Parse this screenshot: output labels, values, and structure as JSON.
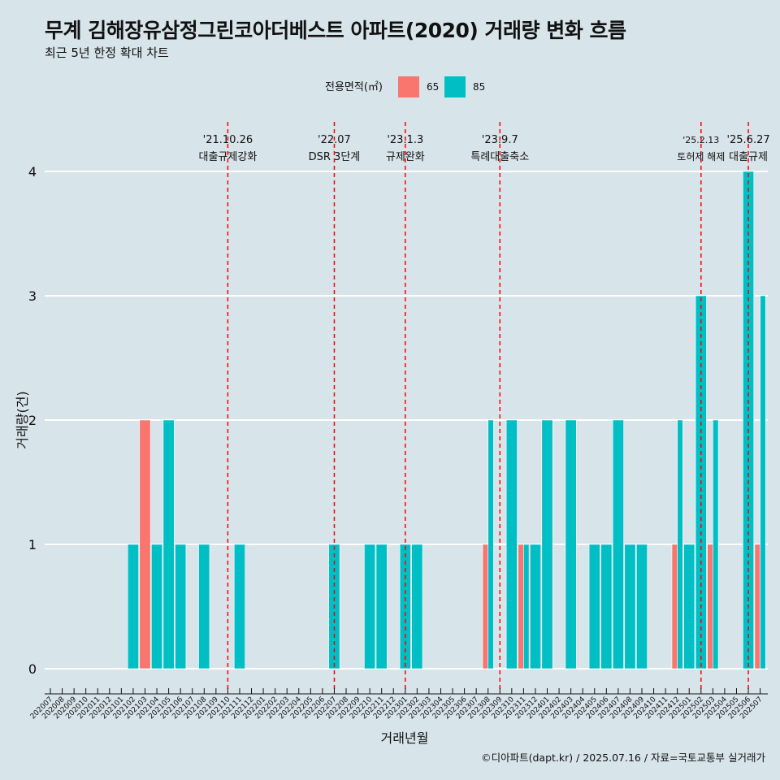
{
  "title": "무계 김해장유삼정그린코아더베스트 아파트(2020) 거래량 변화 흐름",
  "subtitle": "최근 5년 한정 확대 차트",
  "caption": "©디아파트(dapt.kr) / 2025.07.16 / 자료=국토교통부 실거래가",
  "chart_data": {
    "type": "bar",
    "stacking": "dodge",
    "xlabel": "거래년월",
    "ylabel": "거래량(건)",
    "ylim": [
      0,
      4
    ],
    "yticks": [
      0,
      1,
      2,
      3,
      4
    ],
    "legend": {
      "title": "전용면적(㎡)",
      "position": "top"
    },
    "categories": [
      "202007",
      "202008",
      "202009",
      "202010",
      "202011",
      "202012",
      "202101",
      "202102",
      "202103",
      "202104",
      "202105",
      "202106",
      "202107",
      "202108",
      "202109",
      "202110",
      "202111",
      "202112",
      "202201",
      "202202",
      "202203",
      "202204",
      "202205",
      "202206",
      "202207",
      "202208",
      "202209",
      "202210",
      "202211",
      "202212",
      "202301",
      "202302",
      "202303",
      "202304",
      "202305",
      "202306",
      "202307",
      "202308",
      "202309",
      "202310",
      "202311",
      "202312",
      "202401",
      "202402",
      "202403",
      "202404",
      "202405",
      "202406",
      "202407",
      "202408",
      "202409",
      "202410",
      "202411",
      "202412",
      "202501",
      "202502",
      "202503",
      "202504",
      "202505",
      "202506",
      "202507"
    ],
    "series": [
      {
        "name": "65",
        "color": "#F8766D",
        "values": [
          0,
          0,
          0,
          0,
          0,
          0,
          0,
          0,
          2,
          0,
          0,
          0,
          0,
          0,
          0,
          0,
          0,
          0,
          0,
          0,
          0,
          0,
          0,
          0,
          0,
          0,
          0,
          0,
          0,
          0,
          0,
          0,
          0,
          0,
          0,
          0,
          0,
          1,
          0,
          0,
          1,
          0,
          0,
          0,
          0,
          0,
          0,
          0,
          0,
          0,
          0,
          0,
          0,
          1,
          0,
          0,
          1,
          0,
          0,
          0,
          1
        ]
      },
      {
        "name": "85",
        "color": "#00BFC4",
        "values": [
          0,
          0,
          0,
          0,
          0,
          0,
          0,
          1,
          0,
          1,
          2,
          1,
          0,
          1,
          0,
          0,
          1,
          0,
          0,
          0,
          0,
          0,
          0,
          0,
          1,
          0,
          0,
          1,
          1,
          0,
          1,
          1,
          0,
          0,
          0,
          0,
          0,
          2,
          0,
          2,
          1,
          1,
          2,
          0,
          2,
          0,
          1,
          1,
          2,
          1,
          1,
          0,
          0,
          2,
          1,
          3,
          2,
          0,
          0,
          4,
          3
        ]
      }
    ],
    "events": [
      {
        "date": "'21.10.26",
        "label": "대출규제강화",
        "category": "202110"
      },
      {
        "date": "'22.07",
        "label": "DSR 3단계",
        "category": "202207"
      },
      {
        "date": "'23.1.3",
        "label": "규제완화",
        "category": "202301"
      },
      {
        "date": "'23.9.7",
        "label": "특례대출축소",
        "category": "202309"
      },
      {
        "date": "'25.2.13",
        "label": "토허제 해제",
        "category": "202502"
      },
      {
        "date": "'25.6.27",
        "label": "대출규제",
        "category": "202506"
      }
    ]
  }
}
